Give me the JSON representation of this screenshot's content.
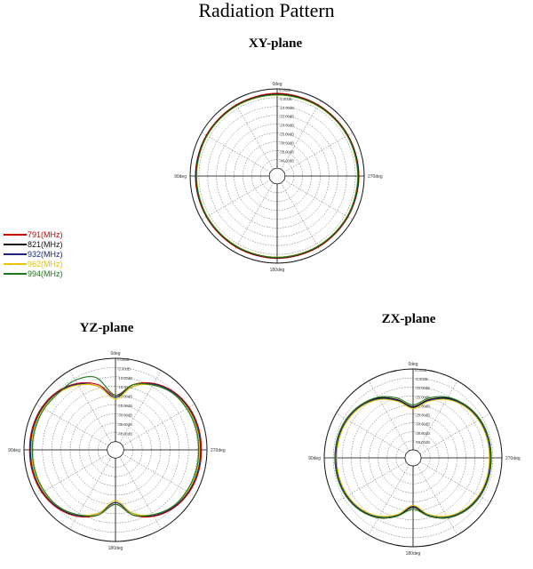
{
  "title": "Radiation Pattern",
  "ring_labels": [
    "0.00dB",
    "-5.00dB",
    "-10.00dB",
    "-15.00dB",
    "-20.00dB",
    "-25.00dB",
    "-30.00dB",
    "-35.00dB",
    "-40.00dB"
  ],
  "angle_labels": {
    "top": "0deg",
    "left": "90deg",
    "right": "270deg",
    "bottom": "180deg"
  },
  "chart_data": [
    {
      "type": "polar",
      "title": "XY-plane",
      "r_unit": "dB",
      "r_range": [
        -45,
        0
      ],
      "theta_unit": "deg",
      "theta": [
        0,
        30,
        60,
        90,
        120,
        150,
        180,
        210,
        240,
        270,
        300,
        330
      ],
      "series": [
        {
          "name": "791(MHz)",
          "color": "#cc0000",
          "values": [
            -2.5,
            -2.8,
            -3,
            -3,
            -3,
            -2.8,
            -2.7,
            -2.8,
            -3,
            -3,
            -3,
            -2.8
          ]
        },
        {
          "name": "821(MHz)",
          "color": "#111111",
          "values": [
            -3,
            -3.2,
            -3.3,
            -3.2,
            -3.3,
            -3.2,
            -3,
            -3.2,
            -3.3,
            -3.2,
            -3.3,
            -3.2
          ]
        },
        {
          "name": "932(MHz)",
          "color": "#1a237e",
          "values": [
            -3.2,
            -3.4,
            -3.5,
            -3.4,
            -3.5,
            -3.4,
            -3.2,
            -3.4,
            -3.5,
            -3.4,
            -3.5,
            -3.4
          ]
        },
        {
          "name": "962(MHz)",
          "color": "#e6c200",
          "values": [
            -3.5,
            -3.5,
            -3.6,
            -3.8,
            -3.6,
            -3.5,
            -3.4,
            -3.5,
            -3.6,
            -3.8,
            -3.6,
            -3.5
          ]
        },
        {
          "name": "994(MHz)",
          "color": "#1b7a1b",
          "values": [
            -3.3,
            -3.4,
            -3.5,
            -3.6,
            -3.5,
            -3.4,
            -3.3,
            -3.4,
            -3.5,
            -3.6,
            -3.5,
            -3.4
          ]
        }
      ]
    },
    {
      "type": "polar",
      "title": "YZ-plane",
      "r_unit": "dB",
      "r_range": [
        -45,
        0
      ],
      "theta_unit": "deg",
      "theta": [
        0,
        15,
        30,
        45,
        60,
        75,
        90,
        105,
        120,
        135,
        150,
        165,
        180,
        195,
        210,
        225,
        240,
        255,
        270,
        285,
        300,
        315,
        330,
        345
      ],
      "series": [
        {
          "name": "791(MHz)",
          "color": "#cc0000",
          "values": [
            -20,
            -13,
            -8,
            -5,
            -3.5,
            -3,
            -3,
            -3,
            -3.5,
            -5,
            -8,
            -13,
            -20,
            -13,
            -8,
            -5,
            -3.5,
            -3,
            -3,
            -3,
            -3.5,
            -5,
            -8,
            -13
          ]
        },
        {
          "name": "821(MHz)",
          "color": "#111111",
          "values": [
            -21,
            -14,
            -8.5,
            -5.5,
            -4,
            -3.5,
            -3.5,
            -3.5,
            -4,
            -5.5,
            -8.5,
            -14,
            -21,
            -14,
            -8.5,
            -5.5,
            -4,
            -3.5,
            -3.5,
            -3.5,
            -4,
            -5.5,
            -8.5,
            -14
          ]
        },
        {
          "name": "932(MHz)",
          "color": "#1a237e",
          "values": [
            -21,
            -14,
            -8.5,
            -5.5,
            -4,
            -3.5,
            -3.5,
            -3.5,
            -4,
            -5.5,
            -8.5,
            -14,
            -21,
            -14,
            -8.5,
            -5.5,
            -4,
            -3.5,
            -3.5,
            -3.5,
            -4,
            -5.5,
            -8.5,
            -14
          ]
        },
        {
          "name": "962(MHz)",
          "color": "#e6c200",
          "values": [
            -22,
            -14,
            -9,
            -6,
            -4.5,
            -4,
            -4,
            -4,
            -4.5,
            -6,
            -9,
            -14,
            -22,
            -14,
            -9,
            -6,
            -4.5,
            -4,
            -4,
            -4,
            -4.5,
            -6,
            -9,
            -14
          ]
        },
        {
          "name": "994(MHz)",
          "color": "#1b7a1b",
          "values": [
            -20,
            -9,
            -6,
            -6,
            -5,
            -4.5,
            -4.5,
            -4.5,
            -5,
            -6,
            -9,
            -13,
            -20,
            -13,
            -9,
            -6,
            -5,
            -4.5,
            -4.5,
            -4.5,
            -5,
            -6,
            -9,
            -13
          ]
        }
      ]
    },
    {
      "type": "polar",
      "title": "ZX-plane",
      "r_unit": "dB",
      "r_range": [
        -45,
        0
      ],
      "theta_unit": "deg",
      "theta": [
        0,
        15,
        30,
        45,
        60,
        75,
        90,
        105,
        120,
        135,
        150,
        165,
        180,
        195,
        210,
        225,
        240,
        255,
        270,
        285,
        300,
        315,
        330,
        345
      ],
      "series": [
        {
          "name": "791(MHz)",
          "color": "#cc0000",
          "values": [
            -21,
            -16,
            -11,
            -8,
            -6.5,
            -6,
            -6,
            -6,
            -6.5,
            -8,
            -11,
            -16,
            -22,
            -16,
            -11,
            -8,
            -6.5,
            -6,
            -6,
            -6,
            -6.5,
            -8,
            -11,
            -16
          ]
        },
        {
          "name": "821(MHz)",
          "color": "#111111",
          "values": [
            -21,
            -16,
            -11,
            -8,
            -6.5,
            -6,
            -6,
            -6,
            -6.5,
            -8,
            -11,
            -16,
            -22,
            -16,
            -11,
            -8,
            -6.5,
            -6,
            -6,
            -6,
            -6.5,
            -8,
            -11,
            -16
          ]
        },
        {
          "name": "932(MHz)",
          "color": "#1a237e",
          "values": [
            -21.5,
            -16.5,
            -11.5,
            -8.5,
            -7,
            -6.5,
            -6.5,
            -6.5,
            -7,
            -8.5,
            -11.5,
            -16.5,
            -22.5,
            -16.5,
            -11.5,
            -8.5,
            -7,
            -6.5,
            -6.5,
            -6.5,
            -7,
            -8.5,
            -11.5,
            -16.5
          ]
        },
        {
          "name": "962(MHz)",
          "color": "#e6c200",
          "values": [
            -22,
            -17,
            -12,
            -9,
            -7.5,
            -7,
            -7,
            -7,
            -7.5,
            -9,
            -12,
            -17,
            -23,
            -17,
            -12,
            -9,
            -7.5,
            -7,
            -7,
            -7,
            -7.5,
            -9,
            -12,
            -17
          ]
        },
        {
          "name": "994(MHz)",
          "color": "#1b7a1b",
          "values": [
            -20,
            -15,
            -10.5,
            -8,
            -6.5,
            -6,
            -6,
            -6,
            -6.5,
            -8,
            -11,
            -16,
            -21,
            -16,
            -11,
            -8,
            -6.5,
            -6,
            -6,
            -6,
            -6.5,
            -8,
            -10.5,
            -15
          ]
        }
      ]
    }
  ],
  "legend": [
    {
      "label": "791(MHz)",
      "color": "#cc0000"
    },
    {
      "label": "821(MHz)",
      "color": "#111111"
    },
    {
      "label": "932(MHz)",
      "color": "#1a237e"
    },
    {
      "label": "962(MHz)",
      "color": "#e6c200"
    },
    {
      "label": "994(MHz)",
      "color": "#1b7a1b"
    }
  ]
}
